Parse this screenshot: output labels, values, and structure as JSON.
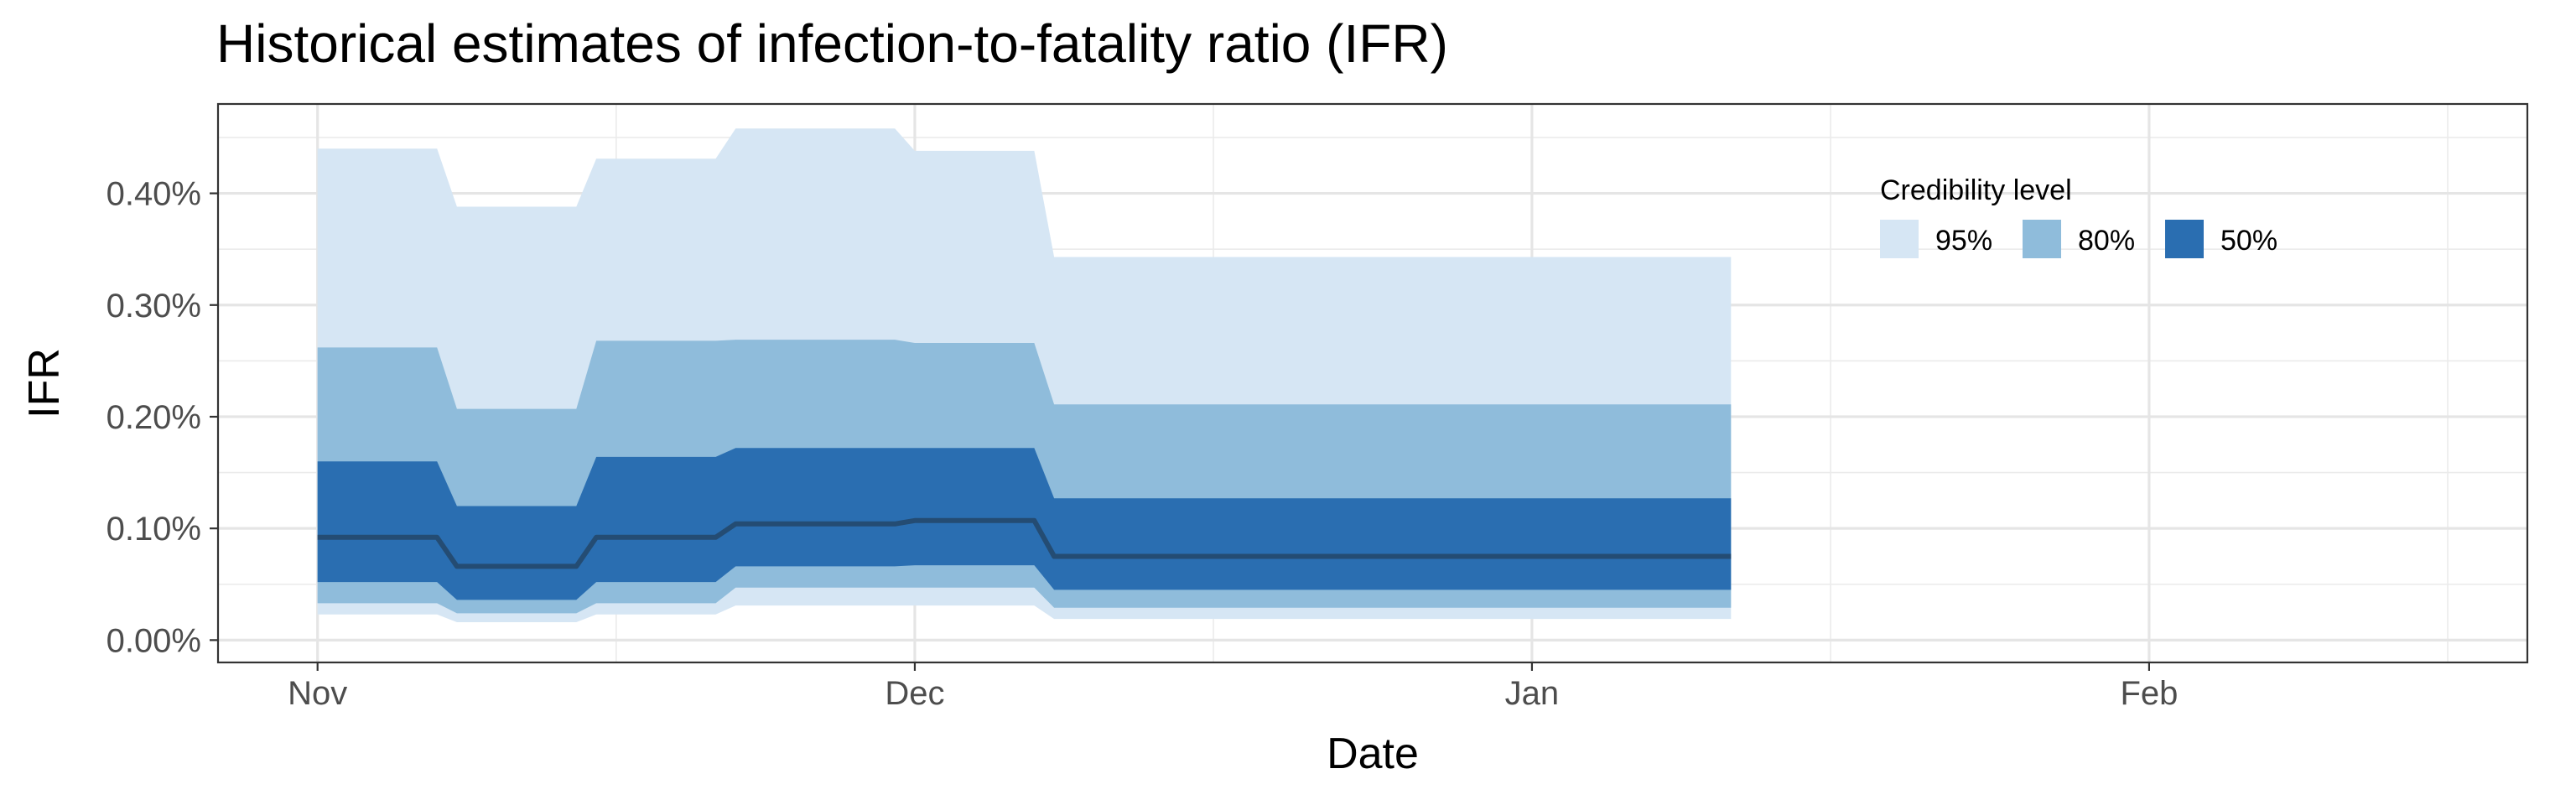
{
  "chart_data": {
    "type": "area",
    "title": "Historical estimates of infection-to-fatality ratio (IFR)",
    "xlabel": "Date",
    "ylabel": "IFR",
    "x_axis": {
      "type": "date",
      "range": [
        "2020-10-27",
        "2021-02-20"
      ],
      "ticks": [
        {
          "date": "2020-11-01",
          "label": "Nov"
        },
        {
          "date": "2020-12-01",
          "label": "Dec"
        },
        {
          "date": "2021-01-01",
          "label": "Jan"
        },
        {
          "date": "2021-02-01",
          "label": "Feb"
        }
      ],
      "minor_ticks": [
        "2020-11-16",
        "2020-12-16",
        "2021-01-16",
        "2021-02-16"
      ]
    },
    "y_axis": {
      "range": [
        -0.02,
        0.48
      ],
      "ticks": [
        {
          "value": 0.0,
          "label": "0.00%"
        },
        {
          "value": 0.1,
          "label": "0.10%"
        },
        {
          "value": 0.2,
          "label": "0.20%"
        },
        {
          "value": 0.3,
          "label": "0.30%"
        },
        {
          "value": 0.4,
          "label": "0.40%"
        }
      ],
      "minor_ticks": [
        0.05,
        0.15,
        0.25,
        0.35,
        0.45
      ]
    },
    "grid": true,
    "legend": {
      "title": "Credibility level",
      "position": "top-right",
      "items": [
        {
          "label": "95%",
          "color": "#d6e6f4"
        },
        {
          "label": "80%",
          "color": "#8fbcdb"
        },
        {
          "label": "50%",
          "color": "#2a6eb1"
        }
      ]
    },
    "median_color": "#244c73",
    "segments": [
      {
        "start": "2020-11-01",
        "end": "2020-11-07",
        "median": 0.092,
        "lo50": 0.052,
        "hi50": 0.16,
        "lo80": 0.033,
        "hi80": 0.262,
        "lo95": 0.023,
        "hi95": 0.44
      },
      {
        "start": "2020-11-08",
        "end": "2020-11-14",
        "median": 0.066,
        "lo50": 0.036,
        "hi50": 0.12,
        "lo80": 0.024,
        "hi80": 0.207,
        "lo95": 0.016,
        "hi95": 0.388
      },
      {
        "start": "2020-11-15",
        "end": "2020-11-21",
        "median": 0.092,
        "lo50": 0.052,
        "hi50": 0.164,
        "lo80": 0.033,
        "hi80": 0.268,
        "lo95": 0.023,
        "hi95": 0.431
      },
      {
        "start": "2020-11-22",
        "end": "2020-11-30",
        "median": 0.104,
        "lo50": 0.066,
        "hi50": 0.172,
        "lo80": 0.047,
        "hi80": 0.269,
        "lo95": 0.031,
        "hi95": 0.458
      },
      {
        "start": "2020-12-01",
        "end": "2020-12-07",
        "median": 0.107,
        "lo50": 0.067,
        "hi50": 0.172,
        "lo80": 0.047,
        "hi80": 0.266,
        "lo95": 0.031,
        "hi95": 0.438
      },
      {
        "start": "2020-12-08",
        "end": "2021-01-11",
        "median": 0.075,
        "lo50": 0.045,
        "hi50": 0.127,
        "lo80": 0.029,
        "hi80": 0.211,
        "lo95": 0.019,
        "hi95": 0.343
      }
    ]
  }
}
